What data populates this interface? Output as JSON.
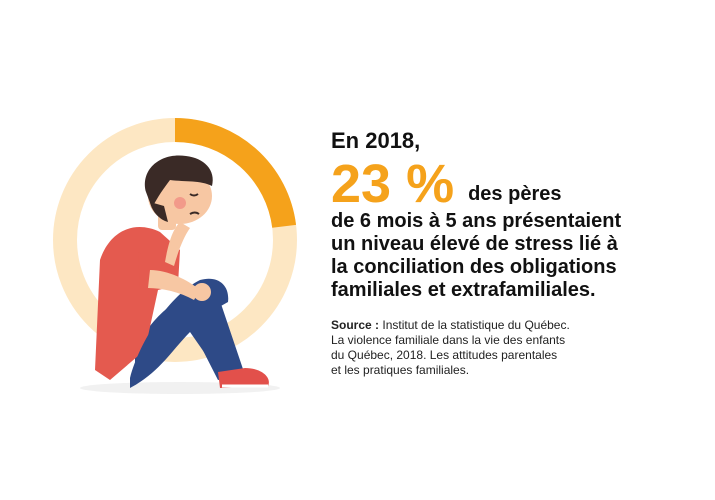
{
  "donut": {
    "percent": 23,
    "color_filled": "#f5a21b",
    "color_remaining": "#fde7c3"
  },
  "headline": {
    "year": "En 2018,",
    "percent_text": "23 %",
    "after_percent": "des pères",
    "lines": [
      "de 6 mois à 5 ans présentaient",
      "un niveau élevé de stress lié à",
      "la conciliation des obligations",
      "familiales et extrafamiliales."
    ]
  },
  "source": {
    "label": "Source :",
    "line1": "Institut de la statistique du Québec.",
    "lines": [
      "La violence familiale dans la vie des enfants",
      "du Québec, 2018. Les attitudes parentales",
      "et les pratiques familiales."
    ]
  },
  "colors": {
    "shirt": "#e45a4f",
    "jeans": "#2e4a87",
    "skin": "#f7c7a3",
    "hair": "#3a2a26",
    "shoes": "#e2504b"
  }
}
